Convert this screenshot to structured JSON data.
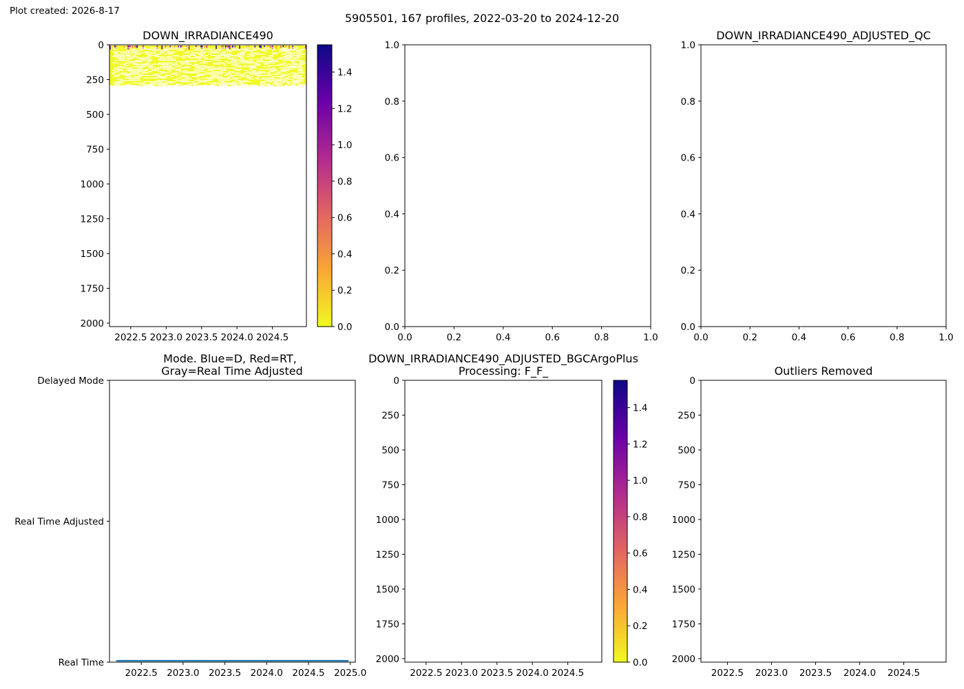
{
  "header": {
    "created": "Plot created: 2026-8-17",
    "suptitle": "5905501, 167 profiles, 2022-03-20 to 2024-12-20"
  },
  "colors": {
    "axis": "#000000",
    "mode_points": "#1f77b4",
    "cmap_plasma_r": [
      "#f0f921",
      "#fca636",
      "#e16462",
      "#b12a90",
      "#6a00a8",
      "#0d0887"
    ]
  },
  "chart_data": [
    {
      "id": "down_irradiance490",
      "type": "heatmap",
      "title": "DOWN_IRRADIANCE490",
      "xlabel": "",
      "ylabel": "",
      "x_ticks": [
        "2022.5",
        "2023.0",
        "2023.5",
        "2024.0",
        "2024.5"
      ],
      "y_ticks": [
        "0",
        "250",
        "500",
        "750",
        "1000",
        "1250",
        "1500",
        "1750",
        "2000"
      ],
      "xlim": [
        2022.2,
        2024.98
      ],
      "ylim": [
        2025,
        0
      ],
      "y_inverted": true,
      "colorbar": {
        "ticks": [
          "0.0",
          "0.2",
          "0.4",
          "0.6",
          "0.8",
          "1.0",
          "1.2",
          "1.4"
        ],
        "vmin": 0.0,
        "vmax": 1.55,
        "cmap": "plasma_r"
      },
      "data_summary": {
        "profiles": 167,
        "time_range": [
          2022.21,
          2024.97
        ],
        "depth_range": [
          0,
          300
        ],
        "typical_value": 0.0,
        "high_values_near_surface_max": 1.5
      }
    },
    {
      "id": "blank_panel",
      "type": "scatter",
      "title": "",
      "xlabel": "",
      "ylabel": "",
      "x_ticks": [
        "0.0",
        "0.2",
        "0.4",
        "0.6",
        "0.8",
        "1.0"
      ],
      "y_ticks": [
        "0.0",
        "0.2",
        "0.4",
        "0.6",
        "0.8",
        "1.0"
      ],
      "xlim": [
        0,
        1
      ],
      "ylim": [
        0,
        1
      ],
      "series": []
    },
    {
      "id": "adjusted_qc",
      "type": "scatter",
      "title": "DOWN_IRRADIANCE490_ADJUSTED_QC",
      "xlabel": "",
      "ylabel": "",
      "x_ticks": [
        "0.0",
        "0.2",
        "0.4",
        "0.6",
        "0.8",
        "1.0"
      ],
      "y_ticks": [
        "0.0",
        "0.2",
        "0.4",
        "0.6",
        "0.8",
        "1.0"
      ],
      "xlim": [
        0,
        1
      ],
      "ylim": [
        0,
        1
      ],
      "series": []
    },
    {
      "id": "mode",
      "type": "scatter",
      "title": "Mode. Blue=D, Red=RT,\nGray=Real Time Adjusted",
      "title_lines": [
        "Mode. Blue=D, Red=RT,",
        "Gray=Real Time Adjusted"
      ],
      "xlabel": "",
      "ylabel": "",
      "x_ticks": [
        "2022.5",
        "2023.0",
        "2023.5",
        "2024.0",
        "2024.5",
        "2025.0"
      ],
      "y_ticks": [
        "Delayed Mode",
        "Real Time Adjusted",
        "Real Time"
      ],
      "xlim": [
        2022.12,
        2025.06
      ],
      "ylim": [
        0,
        2
      ],
      "categories": [
        "Real Time",
        "Real Time Adjusted",
        "Delayed Mode"
      ],
      "series": [
        {
          "mode": "Real Time",
          "y": 0,
          "x_start": 2022.21,
          "x_end": 2024.97,
          "count": 167
        }
      ]
    },
    {
      "id": "bgcargoplus",
      "type": "heatmap",
      "title": "DOWN_IRRADIANCE490_ADJUSTED_BGCArgoPlus\nProcessing: F_F_",
      "title_lines": [
        "DOWN_IRRADIANCE490_ADJUSTED_BGCArgoPlus",
        "Processing: F_F_"
      ],
      "xlabel": "",
      "ylabel": "",
      "x_ticks": [
        "2022.5",
        "2023.0",
        "2023.5",
        "2024.0",
        "2024.5"
      ],
      "y_ticks": [
        "0",
        "250",
        "500",
        "750",
        "1000",
        "1250",
        "1500",
        "1750",
        "2000"
      ],
      "xlim": [
        2022.2,
        2024.98
      ],
      "ylim": [
        2025,
        0
      ],
      "y_inverted": true,
      "colorbar": {
        "ticks": [
          "0.0",
          "0.2",
          "0.4",
          "0.6",
          "0.8",
          "1.0",
          "1.2",
          "1.4"
        ],
        "vmin": 0.0,
        "vmax": 1.55,
        "cmap": "plasma_r"
      },
      "series": []
    },
    {
      "id": "outliers",
      "type": "scatter",
      "title": "Outliers Removed",
      "xlabel": "",
      "ylabel": "",
      "x_ticks": [
        "2022.5",
        "2023.0",
        "2023.5",
        "2024.0",
        "2024.5"
      ],
      "y_ticks": [
        "0",
        "250",
        "500",
        "750",
        "1000",
        "1250",
        "1500",
        "1750",
        "2000"
      ],
      "xlim": [
        2022.2,
        2024.98
      ],
      "ylim": [
        2025,
        0
      ],
      "y_inverted": true,
      "series": []
    }
  ]
}
